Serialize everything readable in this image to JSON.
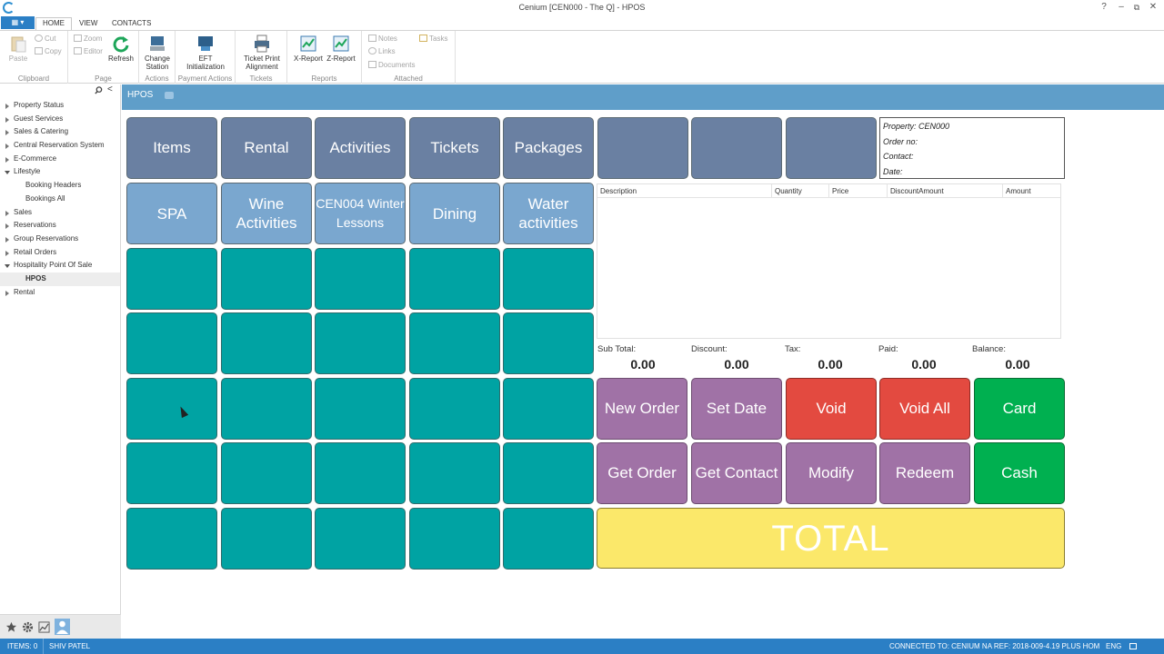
{
  "window": {
    "title": "Cenium [CEN000 - The Q] - HPOS",
    "help": "?",
    "minimize": "–",
    "restore": "⧉",
    "close": "✕"
  },
  "ribbon_tabs": {
    "file": "▦ ▾",
    "home": "HOME",
    "view": "VIEW",
    "contacts": "CONTACTS"
  },
  "ribbon": {
    "clipboard": {
      "label": "Clipboard",
      "paste": "Paste",
      "cut": "Cut",
      "copy": "Copy"
    },
    "page": {
      "label": "Page",
      "zoom": "Zoom",
      "editor": "Editor",
      "refresh": "Refresh"
    },
    "actions": {
      "label": "Actions",
      "change_station": "Change Station"
    },
    "payment": {
      "label": "Payment Actions",
      "eft": "EFT Initialization"
    },
    "tickets": {
      "label": "Tickets",
      "ticket_print": "Ticket Print Alignment"
    },
    "reports": {
      "label": "Reports",
      "x_report": "X-Report",
      "z_report": "Z-Report"
    },
    "attached": {
      "label": "Attached",
      "notes": "Notes",
      "links": "Links",
      "documents": "Documents",
      "tasks": "Tasks"
    }
  },
  "nav": {
    "collapse": "<",
    "items": [
      {
        "label": "Property Status",
        "type": "closed"
      },
      {
        "label": "Guest Services",
        "type": "closed"
      },
      {
        "label": "Sales & Catering",
        "type": "closed"
      },
      {
        "label": "Central Reservation System",
        "type": "closed"
      },
      {
        "label": "E-Commerce",
        "type": "closed"
      },
      {
        "label": "Lifestyle",
        "type": "open"
      },
      {
        "label": "Booking Headers",
        "type": "child"
      },
      {
        "label": "Bookings All",
        "type": "child"
      },
      {
        "label": "Sales",
        "type": "closed"
      },
      {
        "label": "Reservations",
        "type": "closed"
      },
      {
        "label": "Group Reservations",
        "type": "closed"
      },
      {
        "label": "Retail Orders",
        "type": "closed"
      },
      {
        "label": "Hospitality Point Of Sale",
        "type": "open"
      },
      {
        "label": "HPOS",
        "type": "child-selected"
      },
      {
        "label": "Rental",
        "type": "closed"
      }
    ]
  },
  "header": {
    "title": "HPOS"
  },
  "categories": [
    "Items",
    "Rental",
    "Activities",
    "Tickets",
    "Packages"
  ],
  "subcategories": [
    "SPA",
    "Wine Activities",
    "CEN004 Winter Lessons",
    "Dining",
    "Water activities"
  ],
  "order_info": {
    "property": "Property: CEN000",
    "order_no": "Order no:",
    "contact": "Contact:",
    "date": "Date:"
  },
  "order_table": {
    "columns": [
      "Description",
      "Quantity",
      "Price",
      "DiscountAmount",
      "Amount"
    ]
  },
  "totals": {
    "subtotal": {
      "label": "Sub Total:",
      "value": "0.00"
    },
    "discount": {
      "label": "Discount:",
      "value": "0.00"
    },
    "tax": {
      "label": "Tax:",
      "value": "0.00"
    },
    "paid": {
      "label": "Paid:",
      "value": "0.00"
    },
    "balance": {
      "label": "Balance:",
      "value": "0.00"
    }
  },
  "actions": {
    "new_order": "New Order",
    "set_date": "Set Date",
    "void": "Void",
    "void_all": "Void All",
    "card": "Card",
    "get_order": "Get Order",
    "get_contact": "Get Contact",
    "modify": "Modify",
    "redeem": "Redeem",
    "cash": "Cash",
    "total": "TOTAL"
  },
  "status": {
    "items": "ITEMS: 0",
    "user": "SHIV PATEL",
    "connection": "CONNECTED TO: CENIUM NA REF: 2018-009-4.19 PLUS HOM",
    "lang": "ENG"
  },
  "colors": {
    "accent": "#2b7fc5",
    "header": "#5f9ec9",
    "tile_empty": "#00a3a3",
    "total": "#fbe86a"
  }
}
